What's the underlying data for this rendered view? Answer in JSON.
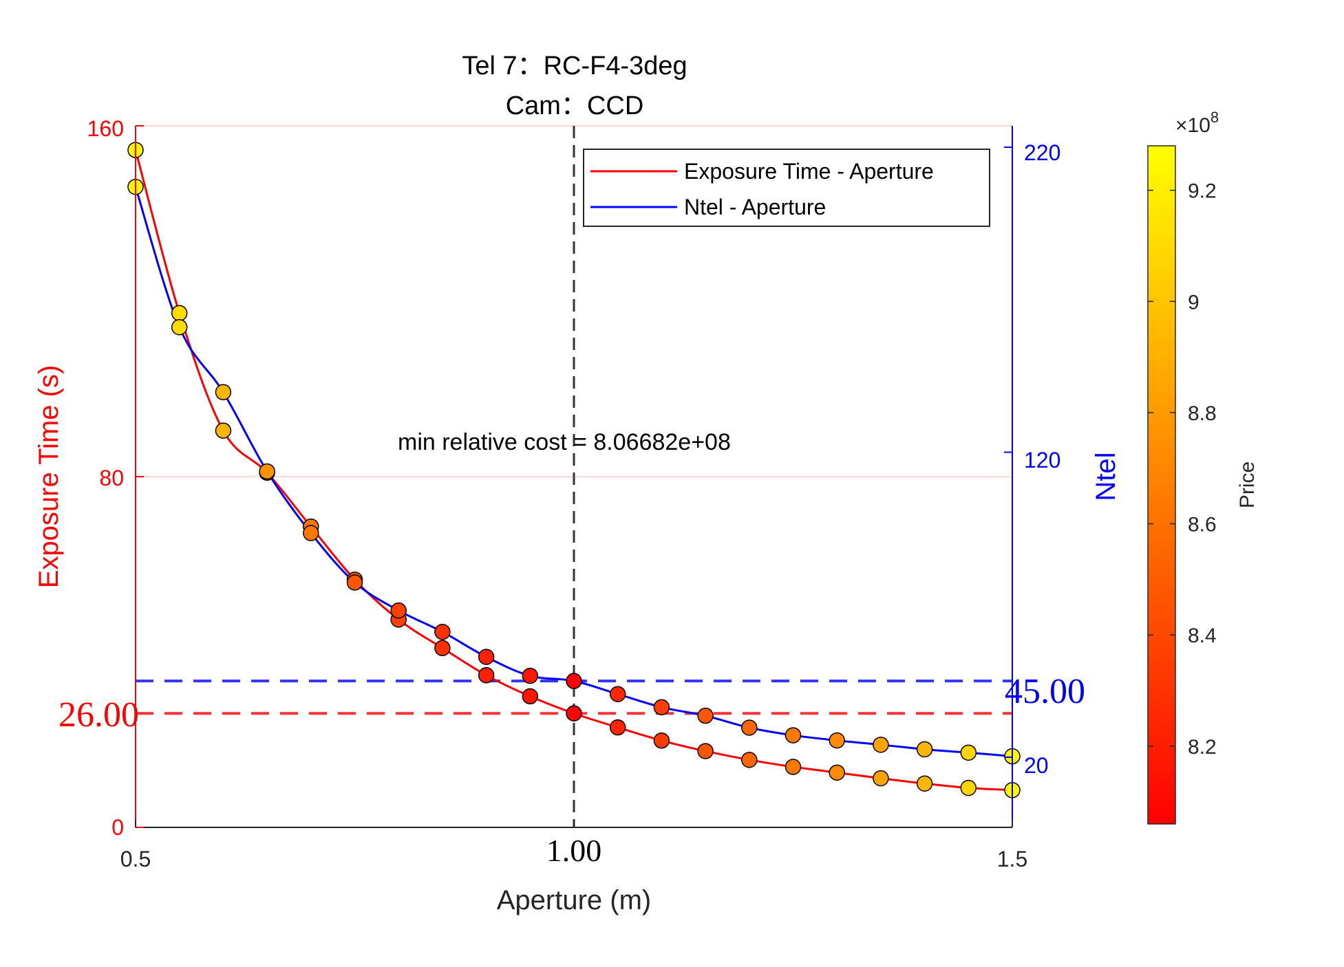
{
  "chart_data": {
    "type": "line",
    "title_line1": "Tel 7：RC-F4-3deg",
    "title_line2": "Cam：CCD",
    "xlabel": "Aperture (m)",
    "ylabel_left": "Exposure Time (s)",
    "ylabel_right": "Ntel",
    "colorbar_label": "Price",
    "colorbar_exponent_base": "×10",
    "colorbar_exponent_power": "8",
    "xlim": [
      0.5,
      1.5
    ],
    "ylim_left": [
      0,
      160
    ],
    "ylim_right": [
      -3,
      227
    ],
    "clim": [
      8.06,
      9.28
    ],
    "x_ticks": [
      "0.5",
      "1.00",
      "1.5"
    ],
    "y_left_ticks": [
      "0",
      "80",
      "160"
    ],
    "y_right_ticks": [
      "20",
      "120",
      "220"
    ],
    "colorbar_ticks": [
      "8.2",
      "8.4",
      "8.6",
      "8.8",
      "9",
      "9.2"
    ],
    "grid": true,
    "legend_position": "top-right",
    "series": [
      {
        "name": "Exposure Time - Aperture",
        "color": "#ff0000",
        "axis": "left",
        "x": [
          0.5,
          0.55,
          0.6,
          0.65,
          0.7,
          0.75,
          0.8,
          0.85,
          0.9,
          0.95,
          1.0,
          1.05,
          1.1,
          1.15,
          1.2,
          1.25,
          1.3,
          1.35,
          1.4,
          1.45,
          1.5
        ],
        "y": [
          154.5,
          117.3,
          90.5,
          80.9,
          68.6,
          56.5,
          47.4,
          40.9,
          34.7,
          29.9,
          26.0,
          22.8,
          19.8,
          17.4,
          15.4,
          13.8,
          12.5,
          11.2,
          10.0,
          9.0,
          8.5
        ],
        "price": [
          9.23,
          9.11,
          8.93,
          8.76,
          8.63,
          8.47,
          8.37,
          8.29,
          8.22,
          8.17,
          8.07,
          8.24,
          8.35,
          8.47,
          8.55,
          8.64,
          8.73,
          8.84,
          8.93,
          9.08,
          9.24
        ]
      },
      {
        "name": "Ntel - Aperture",
        "color": "#0000ff",
        "axis": "right",
        "x": [
          0.5,
          0.55,
          0.6,
          0.65,
          0.7,
          0.75,
          0.8,
          0.85,
          0.9,
          0.95,
          1.0,
          1.05,
          1.1,
          1.15,
          1.2,
          1.25,
          1.3,
          1.35,
          1.4,
          1.45,
          1.5
        ],
        "y": [
          207,
          161,
          139.7,
          113.7,
          93.5,
          77.3,
          68.1,
          61.1,
          52.9,
          46.7,
          45.0,
          40.7,
          36.4,
          33.6,
          29.7,
          27.2,
          25.5,
          24.1,
          22.6,
          21.5,
          20.3
        ],
        "price": [
          9.23,
          9.11,
          8.93,
          8.76,
          8.63,
          8.47,
          8.37,
          8.29,
          8.22,
          8.17,
          8.07,
          8.24,
          8.35,
          8.47,
          8.55,
          8.64,
          8.73,
          8.84,
          8.93,
          9.08,
          9.24
        ]
      }
    ],
    "reference_lines": {
      "optimal_aperture": 1.0,
      "optimal_exposure": 26.0,
      "optimal_ntel": 45.0
    },
    "annotations": {
      "cost_text": "min relative cost = 8.06682e+08",
      "x_marker_label": "1.00",
      "exposure_marker_label": "26.00",
      "ntel_marker_label": "45.00"
    }
  }
}
